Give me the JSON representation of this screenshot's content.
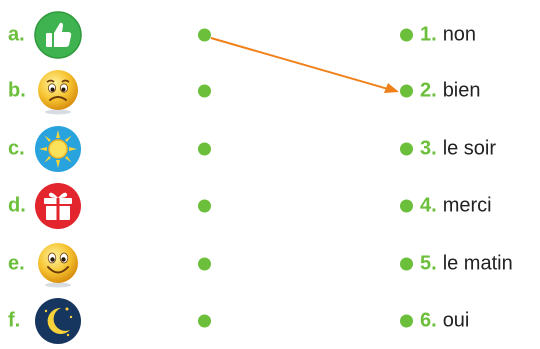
{
  "colors": {
    "accent": "#6cbf3a",
    "arrow": "#f0801a",
    "text": "#222222"
  },
  "left_items": [
    {
      "letter": "a.",
      "icon": "thumbs-up-icon"
    },
    {
      "letter": "b.",
      "icon": "sad-face-icon"
    },
    {
      "letter": "c.",
      "icon": "sun-icon"
    },
    {
      "letter": "d.",
      "icon": "gift-icon"
    },
    {
      "letter": "e.",
      "icon": "smiley-face-icon"
    },
    {
      "letter": "f.",
      "icon": "moon-night-icon"
    }
  ],
  "right_items": [
    {
      "number": "1.",
      "word": "non"
    },
    {
      "number": "2.",
      "word": "bien"
    },
    {
      "number": "3.",
      "word": "le soir"
    },
    {
      "number": "4.",
      "word": "merci"
    },
    {
      "number": "5.",
      "word": "le matin"
    },
    {
      "number": "6.",
      "word": "oui"
    }
  ],
  "connection": {
    "from": "a.",
    "to": "2."
  }
}
